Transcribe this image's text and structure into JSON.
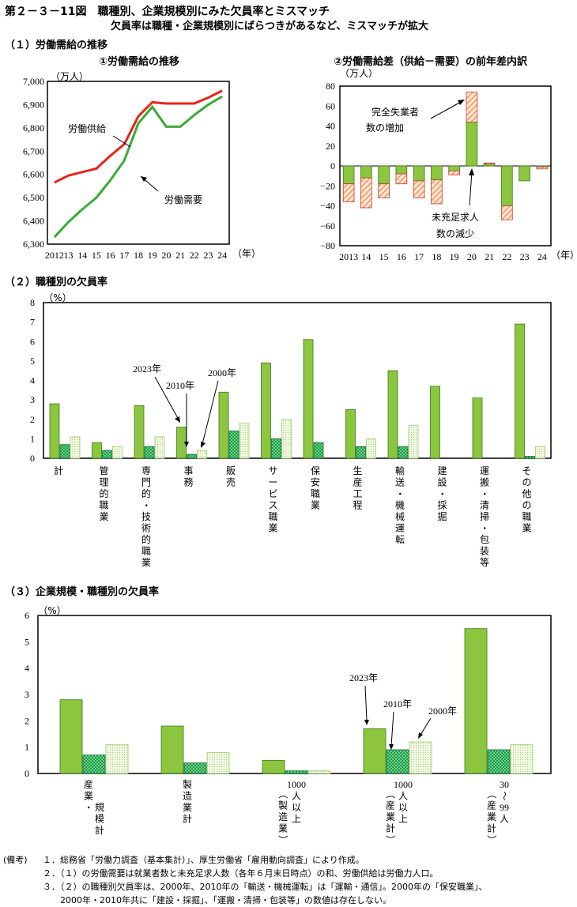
{
  "header": {
    "title": "第２－３－11図　職種別、企業規模別にみた欠員率とミスマッチ",
    "subtitle": "欠員率は職種・企業規模別にばらつきがあるなど、ミスマッチが拡大"
  },
  "section1": {
    "label": "（１）労働需給の推移",
    "chart1_title": "①労働需給の推移",
    "chart2_title": "②労働需給差（供給－需要）の前年差内訳"
  },
  "section2": {
    "label": "（２）職種別の欠員率"
  },
  "section3": {
    "label": "（３）企業規模・職種別の欠員率"
  },
  "notes": {
    "prefix": "(備考)",
    "items": [
      "１．総務省「労働力調査（基本集計）」、厚生労働省「雇用動向調査」により作成。",
      "２．（１）の労働需要は就業者数と未充足求人数（各年６月末日時点）の和、労働供給は労働力人口。",
      "３．（２）の職種別欠員率は、2000年、2010年の「輸送・機械運転」は「運輸・通信」。2000年の「保安職業」、",
      "2000年・2010年共に「建設・採掘」、「運搬・清掃・包装等」の数値は存在しない。"
    ]
  },
  "colors": {
    "supply": "#e8251c",
    "demand": "#3aaa35",
    "bar2023": "#8cc63f",
    "bar2010": "#1a9c4a",
    "bar2000": "#eef6d8",
    "unemployed": "#f7a676"
  },
  "chart_data": [
    {
      "id": "supply-demand",
      "type": "line",
      "title": "①労働需給の推移",
      "unit_label": "（万人）",
      "year_suffix": "（年）",
      "x": [
        "2012",
        "13",
        "14",
        "15",
        "16",
        "17",
        "18",
        "19",
        "20",
        "21",
        "22",
        "23",
        "24"
      ],
      "ylim": [
        6300,
        7000
      ],
      "yticks": [
        "6,300",
        "6,400",
        "6,500",
        "6,600",
        "6,700",
        "6,800",
        "6,900",
        "7,000"
      ],
      "series": [
        {
          "name": "労働供給",
          "values": [
            6565,
            6595,
            6610,
            6625,
            6680,
            6730,
            6850,
            6910,
            6905,
            6905,
            6905,
            6930,
            6960
          ]
        },
        {
          "name": "労働需要",
          "values": [
            6330,
            6395,
            6450,
            6500,
            6575,
            6660,
            6820,
            6890,
            6805,
            6805,
            6855,
            6900,
            6935
          ]
        }
      ]
    },
    {
      "id": "gap-decomposition",
      "type": "bar",
      "stacked": true,
      "title": "②労働需給差（供給－需要）の前年差内訳",
      "unit_label": "（万人）",
      "year_suffix": "（年）",
      "categories": [
        "2013",
        "14",
        "15",
        "16",
        "17",
        "18",
        "19",
        "20",
        "21",
        "22",
        "23",
        "24"
      ],
      "ylim": [
        -80,
        80
      ],
      "yticks": [
        "80",
        "60",
        "40",
        "20",
        "0",
        "−20",
        "−40",
        "−60",
        "−80"
      ],
      "series": [
        {
          "name": "未充足求人数の減少",
          "values": [
            -18,
            -12,
            -18,
            -8,
            -15,
            -14,
            -5,
            44,
            2,
            -40,
            -15,
            -1
          ]
        },
        {
          "name": "完全失業者数の増加",
          "values": [
            -18,
            -30,
            -14,
            -10,
            -17,
            -24,
            -4,
            30,
            1,
            -14,
            0,
            -2
          ]
        }
      ],
      "annotations": [
        "完全失業者",
        "数の増加",
        "未充足求人",
        "数の減少"
      ]
    },
    {
      "id": "occupation-vacancy",
      "type": "bar",
      "title": "（２）職種別の欠員率",
      "unit_label": "（%）",
      "ylim": [
        0,
        8
      ],
      "yticks": [
        "0",
        "1",
        "2",
        "3",
        "4",
        "5",
        "6",
        "7",
        "8"
      ],
      "categories": [
        "計",
        "管理的職業",
        "専門的・技術的職業",
        "事務",
        "販売",
        "サービス職業",
        "保安職業",
        "生産工程",
        "輸送・機械運転",
        "建設・採掘",
        "運搬・清掃・包装等",
        "その他の職業"
      ],
      "series": [
        {
          "name": "2023年",
          "values": [
            2.8,
            0.8,
            2.7,
            1.6,
            3.4,
            4.9,
            6.1,
            2.5,
            4.5,
            3.7,
            3.1,
            6.9
          ]
        },
        {
          "name": "2010年",
          "values": [
            0.7,
            0.4,
            0.6,
            0.2,
            1.4,
            1.0,
            0.8,
            0.6,
            0.6,
            null,
            null,
            0.1
          ]
        },
        {
          "name": "2000年",
          "values": [
            1.1,
            0.6,
            1.1,
            0.4,
            1.8,
            2.0,
            null,
            1.0,
            1.7,
            null,
            null,
            0.6
          ]
        }
      ]
    },
    {
      "id": "size-vacancy",
      "type": "bar",
      "title": "（３）企業規模・職種別の欠員率",
      "unit_label": "（%）",
      "ylim": [
        0,
        6
      ],
      "yticks": [
        "0",
        "1",
        "2",
        "3",
        "4",
        "5",
        "6"
      ],
      "categories": [
        "産業・規模計",
        "製造業計",
        "1000人以上（製造業）",
        "1000人以上（産業計）",
        "30～99人（産業計）"
      ],
      "series": [
        {
          "name": "2023年",
          "values": [
            2.8,
            1.8,
            0.5,
            1.7,
            5.5
          ]
        },
        {
          "name": "2010年",
          "values": [
            0.7,
            0.4,
            0.1,
            0.9,
            0.9
          ]
        },
        {
          "name": "2000年",
          "values": [
            1.1,
            0.8,
            0.1,
            1.2,
            1.1
          ]
        }
      ]
    }
  ]
}
